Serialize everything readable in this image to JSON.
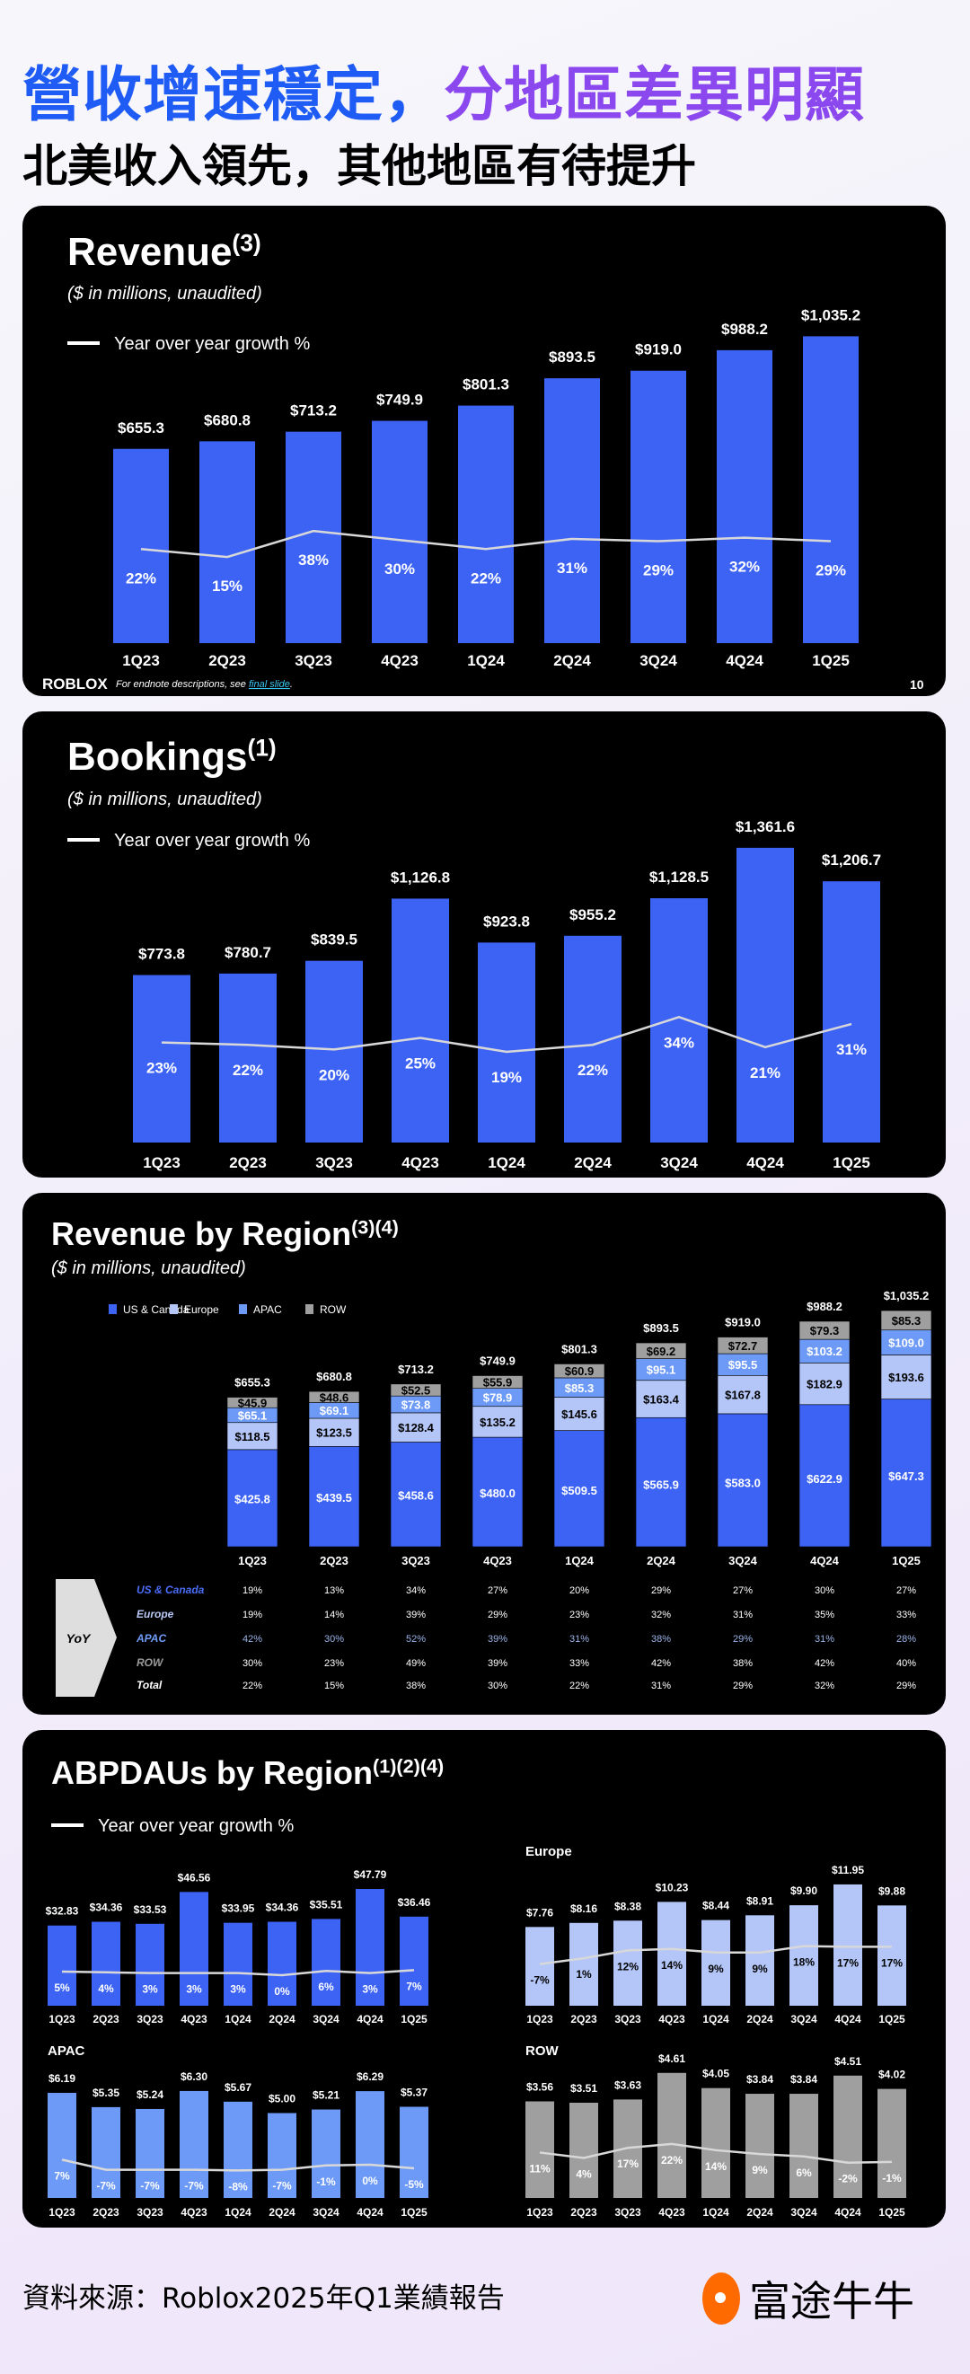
{
  "header": {
    "title_part1": "營收增速穩定，",
    "title_part2": "分地區差異明顯",
    "subtitle": "北美收入領先，其他地區有待提升"
  },
  "footer": {
    "source": "資料來源：Roblox2025年Q1業績報告",
    "brand": "富途牛牛"
  },
  "colors": {
    "us_canada": "#3d63f5",
    "europe": "#b3c6f7",
    "apac": "#6d9af6",
    "row": "#9f9f9f",
    "growth_line": "#d8d8d8"
  },
  "chart_data": [
    {
      "id": "revenue",
      "type": "bar",
      "title": "Revenue",
      "title_sup": "(3)",
      "subtitle": "($ in millions, unaudited)",
      "legend": "Year over year growth %",
      "footer_logo": "ROBLOX",
      "footer_note": "For endnote descriptions, see ",
      "footer_link": "final slide",
      "footer_end": ".",
      "page_number": "10",
      "categories": [
        "1Q23",
        "2Q23",
        "3Q23",
        "4Q23",
        "1Q24",
        "2Q24",
        "3Q24",
        "4Q24",
        "1Q25"
      ],
      "values": [
        655.3,
        680.8,
        713.2,
        749.9,
        801.3,
        893.5,
        919.0,
        988.2,
        1035.2
      ],
      "growth": [
        22,
        15,
        38,
        30,
        22,
        31,
        29,
        32,
        29
      ]
    },
    {
      "id": "bookings",
      "type": "bar",
      "title": "Bookings",
      "title_sup": "(1)",
      "subtitle": "($ in millions, unaudited)",
      "legend": "Year over year growth %",
      "categories": [
        "1Q23",
        "2Q23",
        "3Q23",
        "4Q23",
        "1Q24",
        "2Q24",
        "3Q24",
        "4Q24",
        "1Q25"
      ],
      "values": [
        773.8,
        780.7,
        839.5,
        1126.8,
        923.8,
        955.2,
        1128.5,
        1361.6,
        1206.7
      ],
      "growth": [
        23,
        22,
        20,
        25,
        19,
        22,
        34,
        21,
        31
      ]
    },
    {
      "id": "revenue_by_region",
      "type": "bar",
      "title": "Revenue by Region",
      "title_sup": "(3)(4)",
      "subtitle": "($ in millions, unaudited)",
      "categories": [
        "1Q23",
        "2Q23",
        "3Q23",
        "4Q23",
        "1Q24",
        "2Q24",
        "3Q24",
        "4Q24",
        "1Q25"
      ],
      "stacked": true,
      "series": [
        {
          "name": "US & Canada",
          "values": [
            425.8,
            439.5,
            458.6,
            480.0,
            509.5,
            565.9,
            583.0,
            622.9,
            647.3
          ]
        },
        {
          "name": "Europe",
          "values": [
            118.5,
            123.5,
            128.4,
            135.2,
            145.6,
            163.4,
            167.8,
            182.9,
            193.6
          ]
        },
        {
          "name": "APAC",
          "values": [
            65.1,
            69.1,
            73.8,
            78.9,
            85.3,
            95.1,
            95.5,
            103.2,
            109.0
          ]
        },
        {
          "name": "ROW",
          "values": [
            45.9,
            48.6,
            52.5,
            55.9,
            60.9,
            69.2,
            72.7,
            79.3,
            85.3
          ]
        }
      ],
      "totals": [
        655.3,
        680.8,
        713.2,
        749.9,
        801.3,
        893.5,
        919.0,
        988.2,
        1035.2
      ],
      "yoy_table": {
        "label": "YoY",
        "rows": [
          {
            "name": "US & Canada",
            "values": [
              "19%",
              "13%",
              "34%",
              "27%",
              "20%",
              "29%",
              "27%",
              "30%",
              "27%"
            ]
          },
          {
            "name": "Europe",
            "values": [
              "19%",
              "14%",
              "39%",
              "29%",
              "23%",
              "32%",
              "31%",
              "35%",
              "33%"
            ]
          },
          {
            "name": "APAC",
            "values": [
              "42%",
              "30%",
              "52%",
              "39%",
              "31%",
              "38%",
              "29%",
              "31%",
              "28%"
            ]
          },
          {
            "name": "ROW",
            "values": [
              "30%",
              "23%",
              "49%",
              "39%",
              "33%",
              "42%",
              "38%",
              "42%",
              "40%"
            ]
          },
          {
            "name": "Total",
            "values": [
              "22%",
              "15%",
              "38%",
              "30%",
              "22%",
              "31%",
              "29%",
              "32%",
              "29%"
            ]
          }
        ]
      }
    },
    {
      "id": "abpdau_by_region",
      "type": "bar",
      "title": "ABPDAUs by Region",
      "title_sup": "(1)(2)(4)",
      "legend": "Year over year growth %",
      "categories": [
        "1Q23",
        "2Q23",
        "3Q23",
        "4Q23",
        "1Q24",
        "2Q24",
        "3Q24",
        "4Q24",
        "1Q25"
      ],
      "panels": [
        {
          "name": "",
          "values": [
            32.83,
            34.36,
            33.53,
            46.56,
            33.95,
            34.36,
            35.51,
            47.79,
            36.46
          ],
          "growth": [
            5,
            4,
            3,
            3,
            3,
            0,
            6,
            3,
            7
          ]
        },
        {
          "name": "Europe",
          "values": [
            7.76,
            8.16,
            8.38,
            10.23,
            8.44,
            8.91,
            9.9,
            11.95,
            9.88
          ],
          "growth": [
            -7,
            1,
            12,
            14,
            9,
            9,
            18,
            17,
            17
          ]
        },
        {
          "name": "APAC",
          "values": [
            6.19,
            5.35,
            5.24,
            6.3,
            5.67,
            5.0,
            5.21,
            6.29,
            5.37
          ],
          "growth": [
            7,
            -7,
            -7,
            -7,
            -8,
            -7,
            -1,
            0,
            -5
          ]
        },
        {
          "name": "ROW",
          "values": [
            3.56,
            3.51,
            3.63,
            4.61,
            4.05,
            3.84,
            3.84,
            4.51,
            4.02
          ],
          "growth": [
            11,
            4,
            17,
            22,
            14,
            9,
            6,
            -2,
            -1
          ]
        }
      ]
    }
  ]
}
